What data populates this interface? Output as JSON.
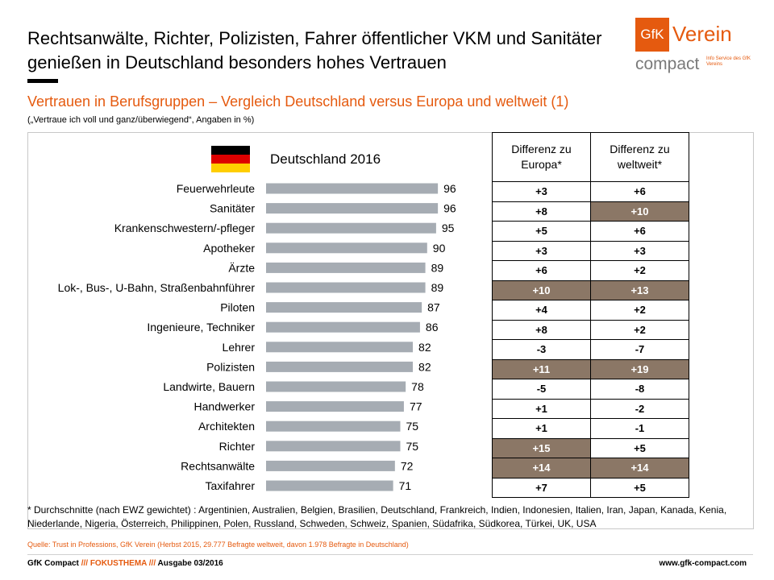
{
  "header": {
    "title": "Rechtsanwälte, Richter, Polizisten, Fahrer öffentlicher VKM und Sanitäter genießen in Deutschland besonders hohes Vertrauen",
    "subtitle": "Vertrauen in Berufsgruppen – Vergleich Deutschland versus Europa und weltweit (1)",
    "note": "(„Vertraue ich voll und ganz/überwiegend“, Angaben in %)"
  },
  "logo": {
    "box": "GfK",
    "verein": "Verein",
    "compact": "compact",
    "info": "Info Service des GfK Vereins",
    "accent": "#e55a0f"
  },
  "flag_colors": [
    "#000000",
    "#dd0000",
    "#ffce00"
  ],
  "chart_data": {
    "type": "bar",
    "orientation": "horizontal",
    "title": "Deutschland 2016",
    "categories": [
      "Feuerwehrleute",
      "Sanitäter",
      "Krankenschwestern/-pfleger",
      "Apotheker",
      "Ärzte",
      "Lok-, Bus-, U-Bahn, Straßenbahnführer",
      "Piloten",
      "Ingenieure, Techniker",
      "Lehrer",
      "Polizisten",
      "Landwirte, Bauern",
      "Handwerker",
      "Architekten",
      "Richter",
      "Rechtsanwälte",
      "Taxifahrer"
    ],
    "values": [
      96,
      96,
      95,
      90,
      89,
      89,
      87,
      86,
      82,
      82,
      78,
      77,
      75,
      75,
      72,
      71
    ],
    "xlim": [
      0,
      100
    ],
    "bar_color": "#a6acb3",
    "grid": false
  },
  "table": {
    "headers": [
      "Differenz zu Europa*",
      "Differenz zu weltweit*"
    ],
    "highlight_color": "#8b7766",
    "rows": [
      {
        "europe": "+3",
        "world": "+6",
        "hl_europe": false,
        "hl_world": false
      },
      {
        "europe": "+8",
        "world": "+10",
        "hl_europe": false,
        "hl_world": true
      },
      {
        "europe": "+5",
        "world": "+6",
        "hl_europe": false,
        "hl_world": false
      },
      {
        "europe": "+3",
        "world": "+3",
        "hl_europe": false,
        "hl_world": false
      },
      {
        "europe": "+6",
        "world": "+2",
        "hl_europe": false,
        "hl_world": false
      },
      {
        "europe": "+10",
        "world": "+13",
        "hl_europe": true,
        "hl_world": true
      },
      {
        "europe": "+4",
        "world": "+2",
        "hl_europe": false,
        "hl_world": false
      },
      {
        "europe": "+8",
        "world": "+2",
        "hl_europe": false,
        "hl_world": false
      },
      {
        "europe": "-3",
        "world": "-7",
        "hl_europe": false,
        "hl_world": false
      },
      {
        "europe": "+11",
        "world": "+19",
        "hl_europe": true,
        "hl_world": true
      },
      {
        "europe": "-5",
        "world": "-8",
        "hl_europe": false,
        "hl_world": false
      },
      {
        "europe": "+1",
        "world": "-2",
        "hl_europe": false,
        "hl_world": false
      },
      {
        "europe": "+1",
        "world": "-1",
        "hl_europe": false,
        "hl_world": false
      },
      {
        "europe": "+15",
        "world": "+5",
        "hl_europe": true,
        "hl_world": false
      },
      {
        "europe": "+14",
        "world": "+14",
        "hl_europe": true,
        "hl_world": true
      },
      {
        "europe": "+7",
        "world": "+5",
        "hl_europe": false,
        "hl_world": false
      }
    ]
  },
  "footnote": "* Durchschnitte (nach EWZ gewichtet) : Argentinien, Australien, Belgien, Brasilien, Deutschland, Frankreich, Indien, Indonesien, Italien, Iran, Japan, Kanada, Kenia, Niederlande, Nigeria, Österreich, Philippinen, Polen, Russland, Schweden, Schweiz, Spanien, Südafrika, Südkorea, Türkei, UK, USA",
  "source": "Quelle: Trust in Professions, GfK Verein (Herbst 2015, 29.777 Befragte weltweit, davon 1.978 Befragte in Deutschland)",
  "footer": {
    "brand": "GfK Compact",
    "sep1": "///",
    "section": "FOKUSTHEMA",
    "sep2": "///",
    "issue": "Ausgabe 03/2016",
    "url": "www.gfk-compact.com"
  }
}
